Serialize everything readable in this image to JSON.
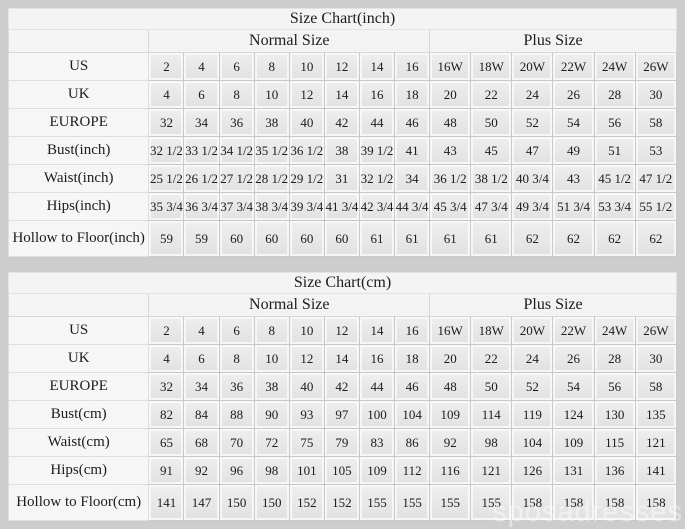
{
  "page": {
    "background_color": "#cdcdcd",
    "watermark_text": "sposadresses"
  },
  "chart_data": [
    {
      "type": "table",
      "title": "Size Chart(inch)",
      "column_groups": [
        {
          "label": "",
          "span": 1
        },
        {
          "label": "Normal Size",
          "span": 8
        },
        {
          "label": "Plus Size",
          "span": 6
        }
      ],
      "rows": [
        {
          "label": "US",
          "normal": [
            "2",
            "4",
            "6",
            "8",
            "10",
            "12",
            "14",
            "16"
          ],
          "plus": [
            "16W",
            "18W",
            "20W",
            "22W",
            "24W",
            "26W"
          ]
        },
        {
          "label": "UK",
          "normal": [
            "4",
            "6",
            "8",
            "10",
            "12",
            "14",
            "16",
            "18"
          ],
          "plus": [
            "20",
            "22",
            "24",
            "26",
            "28",
            "30"
          ]
        },
        {
          "label": "EUROPE",
          "normal": [
            "32",
            "34",
            "36",
            "38",
            "40",
            "42",
            "44",
            "46"
          ],
          "plus": [
            "48",
            "50",
            "52",
            "54",
            "56",
            "58"
          ]
        },
        {
          "label": "Bust(inch)",
          "normal": [
            "32 1/2",
            "33 1/2",
            "34 1/2",
            "35 1/2",
            "36 1/2",
            "38",
            "39 1/2",
            "41"
          ],
          "plus": [
            "43",
            "45",
            "47",
            "49",
            "51",
            "53"
          ]
        },
        {
          "label": "Waist(inch)",
          "normal": [
            "25 1/2",
            "26 1/2",
            "27 1/2",
            "28 1/2",
            "29 1/2",
            "31",
            "32 1/2",
            "34"
          ],
          "plus": [
            "36 1/2",
            "38 1/2",
            "40 3/4",
            "43",
            "45 1/2",
            "47 1/2"
          ]
        },
        {
          "label": "Hips(inch)",
          "normal": [
            "35 3/4",
            "36 3/4",
            "37 3/4",
            "38 3/4",
            "39 3/4",
            "41 3/4",
            "42 3/4",
            "44 3/4"
          ],
          "plus": [
            "45 3/4",
            "47 3/4",
            "49 3/4",
            "51 3/4",
            "53 3/4",
            "55 1/2"
          ]
        },
        {
          "label": "Hollow to Floor(inch)",
          "normal": [
            "59",
            "59",
            "60",
            "60",
            "60",
            "60",
            "61",
            "61"
          ],
          "plus": [
            "61",
            "61",
            "62",
            "62",
            "62",
            "62"
          ]
        }
      ]
    },
    {
      "type": "table",
      "title": "Size Chart(cm)",
      "column_groups": [
        {
          "label": "",
          "span": 1
        },
        {
          "label": "Normal Size",
          "span": 8
        },
        {
          "label": "Plus Size",
          "span": 6
        }
      ],
      "rows": [
        {
          "label": "US",
          "normal": [
            "2",
            "4",
            "6",
            "8",
            "10",
            "12",
            "14",
            "16"
          ],
          "plus": [
            "16W",
            "18W",
            "20W",
            "22W",
            "24W",
            "26W"
          ]
        },
        {
          "label": "UK",
          "normal": [
            "4",
            "6",
            "8",
            "10",
            "12",
            "14",
            "16",
            "18"
          ],
          "plus": [
            "20",
            "22",
            "24",
            "26",
            "28",
            "30"
          ]
        },
        {
          "label": "EUROPE",
          "normal": [
            "32",
            "34",
            "36",
            "38",
            "40",
            "42",
            "44",
            "46"
          ],
          "plus": [
            "48",
            "50",
            "52",
            "54",
            "56",
            "58"
          ]
        },
        {
          "label": "Bust(cm)",
          "normal": [
            "82",
            "84",
            "88",
            "90",
            "93",
            "97",
            "100",
            "104"
          ],
          "plus": [
            "109",
            "114",
            "119",
            "124",
            "130",
            "135"
          ]
        },
        {
          "label": "Waist(cm)",
          "normal": [
            "65",
            "68",
            "70",
            "72",
            "75",
            "79",
            "83",
            "86"
          ],
          "plus": [
            "92",
            "98",
            "104",
            "109",
            "115",
            "121"
          ]
        },
        {
          "label": "Hips(cm)",
          "normal": [
            "91",
            "92",
            "96",
            "98",
            "101",
            "105",
            "109",
            "112"
          ],
          "plus": [
            "116",
            "121",
            "126",
            "131",
            "136",
            "141"
          ]
        },
        {
          "label": "Hollow to Floor(cm)",
          "normal": [
            "141",
            "147",
            "150",
            "150",
            "152",
            "152",
            "155",
            "155"
          ],
          "plus": [
            "155",
            "155",
            "158",
            "158",
            "158",
            "158"
          ]
        }
      ]
    }
  ]
}
